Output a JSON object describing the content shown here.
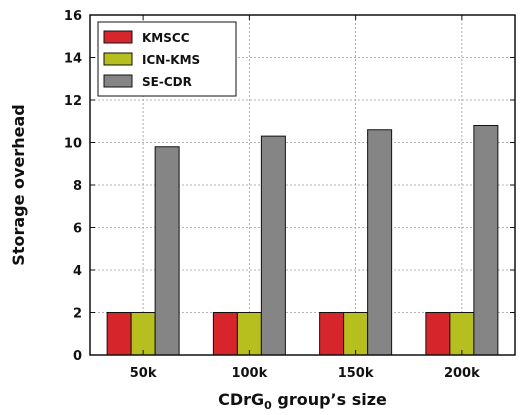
{
  "chart_data": {
    "type": "bar",
    "title": "",
    "xlabel_parts": [
      "CDrG",
      "0",
      " group’s size"
    ],
    "ylabel": "Storage overhead",
    "categories": [
      "50k",
      "100k",
      "150k",
      "200k"
    ],
    "series": [
      {
        "name": "KMSCC",
        "color": "#d7262b",
        "values": [
          2,
          2,
          2,
          2
        ]
      },
      {
        "name": "ICN-KMS",
        "color": "#b7bf1e",
        "values": [
          2,
          2,
          2,
          2
        ]
      },
      {
        "name": "SE-CDR",
        "color": "#858585",
        "values": [
          9.8,
          10.3,
          10.6,
          10.8
        ]
      }
    ],
    "ylim": [
      0,
      16
    ],
    "yticks": [
      0,
      2,
      4,
      6,
      8,
      10,
      12,
      14,
      16
    ],
    "grid": true,
    "legend_position": "top-left"
  }
}
